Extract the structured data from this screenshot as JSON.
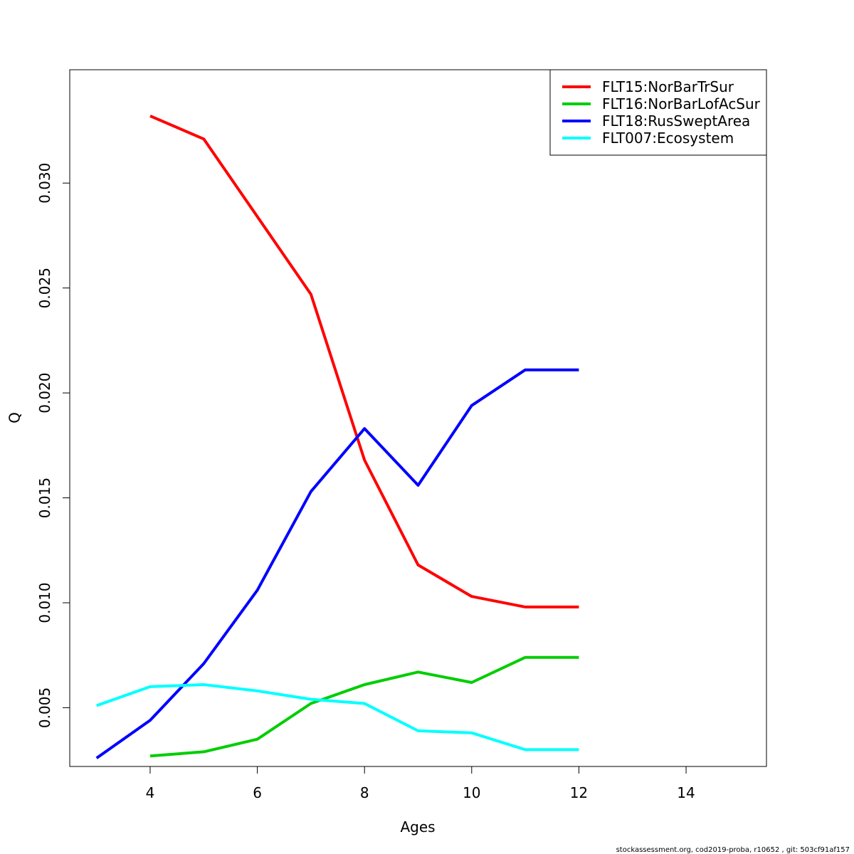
{
  "chart_data": {
    "type": "line",
    "xlabel": "Ages",
    "ylabel": "Q",
    "xlim": [
      2.5,
      15.5
    ],
    "ylim": [
      0.0022,
      0.0354
    ],
    "x_ticks": [
      4,
      6,
      8,
      10,
      12,
      14
    ],
    "y_ticks": [
      0.005,
      0.01,
      0.015,
      0.02,
      0.025,
      0.03
    ],
    "x_tick_labels": [
      "4",
      "6",
      "8",
      "10",
      "12",
      "14"
    ],
    "y_tick_labels": [
      "0.005",
      "0.010",
      "0.015",
      "0.020",
      "0.025",
      "0.030"
    ],
    "grid": false,
    "legend_position": "top-right",
    "series": [
      {
        "name": "FLT15:NorBarTrSur",
        "color": "#ff0000",
        "x": [
          4,
          5,
          6,
          7,
          8,
          9,
          10,
          11,
          12
        ],
        "values": [
          0.0332,
          0.0321,
          0.0284,
          0.0247,
          0.0168,
          0.0118,
          0.0103,
          0.0098,
          0.0098
        ]
      },
      {
        "name": "FLT16:NorBarLofAcSur",
        "color": "#00cd00",
        "x": [
          4,
          5,
          6,
          7,
          8,
          9,
          10,
          11,
          12
        ],
        "values": [
          0.0027,
          0.0029,
          0.0035,
          0.0052,
          0.0061,
          0.0067,
          0.0062,
          0.0074,
          0.0074
        ]
      },
      {
        "name": "FLT18:RusSweptArea",
        "color": "#0000ff",
        "x": [
          3,
          4,
          5,
          6,
          7,
          8,
          9,
          10,
          11,
          12
        ],
        "values": [
          0.0026,
          0.0044,
          0.0071,
          0.0106,
          0.0153,
          0.0183,
          0.0156,
          0.0194,
          0.0211,
          0.0211
        ]
      },
      {
        "name": "FLT007:Ecosystem",
        "color": "#00ffff",
        "x": [
          3,
          4,
          5,
          6,
          7,
          8,
          9,
          10,
          11,
          12
        ],
        "values": [
          0.0051,
          0.006,
          0.0061,
          0.0058,
          0.0054,
          0.0052,
          0.0039,
          0.0038,
          0.003,
          0.003
        ]
      }
    ]
  },
  "footer": {
    "text": "stockassessment.org, cod2019-proba, r10652 , git: 503cf91af157"
  }
}
